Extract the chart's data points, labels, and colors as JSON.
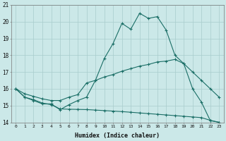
{
  "bg_color": "#cbe8e8",
  "grid_color": "#a8cccc",
  "line_color": "#1a6e66",
  "xlabel": "Humidex (Indice chaleur)",
  "xlim": [
    -0.5,
    23.5
  ],
  "ylim": [
    14,
    21
  ],
  "yticks": [
    14,
    15,
    16,
    17,
    18,
    19,
    20,
    21
  ],
  "xticks": [
    0,
    1,
    2,
    3,
    4,
    5,
    6,
    7,
    8,
    9,
    10,
    11,
    12,
    13,
    14,
    15,
    16,
    17,
    18,
    19,
    20,
    21,
    22,
    23
  ],
  "line1_x": [
    0,
    1,
    2,
    3,
    4,
    5,
    6,
    7,
    8,
    9,
    10,
    11,
    12,
    13,
    14,
    15,
    16,
    17,
    18,
    19,
    20,
    21,
    22,
    23
  ],
  "line1_y": [
    16.0,
    15.5,
    15.3,
    15.1,
    15.1,
    14.75,
    15.05,
    15.3,
    15.5,
    16.5,
    17.8,
    18.7,
    19.9,
    19.55,
    20.5,
    20.2,
    20.3,
    19.5,
    18.0,
    17.5,
    16.0,
    15.2,
    14.1,
    14.0
  ],
  "line2_x": [
    0,
    1,
    2,
    3,
    4,
    5,
    6,
    7,
    8,
    9,
    10,
    11,
    12,
    13,
    14,
    15,
    16,
    17,
    18,
    19,
    20,
    21,
    22,
    23
  ],
  "line2_y": [
    16.0,
    15.7,
    15.55,
    15.4,
    15.3,
    15.3,
    15.5,
    15.65,
    16.35,
    16.5,
    16.7,
    16.85,
    17.05,
    17.2,
    17.35,
    17.45,
    17.6,
    17.65,
    17.75,
    17.5,
    17.0,
    16.5,
    16.0,
    15.5
  ],
  "line3_x": [
    0,
    1,
    2,
    3,
    4,
    5,
    6,
    7,
    8,
    9,
    10,
    11,
    12,
    13,
    14,
    15,
    16,
    17,
    18,
    19,
    20,
    21,
    22,
    23
  ],
  "line3_y": [
    16.0,
    15.5,
    15.35,
    15.15,
    15.05,
    14.8,
    14.78,
    14.77,
    14.76,
    14.73,
    14.7,
    14.67,
    14.64,
    14.6,
    14.56,
    14.52,
    14.48,
    14.44,
    14.4,
    14.36,
    14.32,
    14.28,
    14.12,
    14.0
  ]
}
